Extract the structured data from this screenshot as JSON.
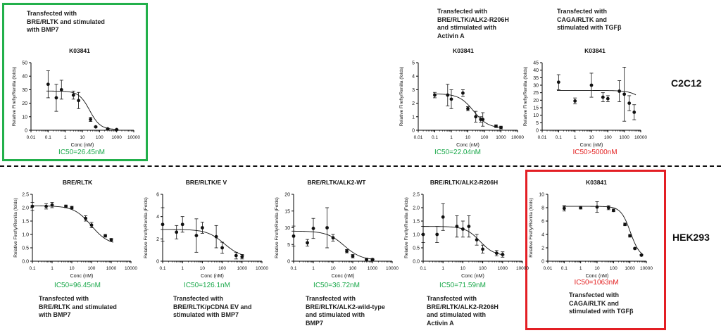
{
  "colors": {
    "accent_green": "#1aa84a",
    "accent_red": "#e32222",
    "box_green": "#22b04b",
    "box_red": "#e31e24"
  },
  "row_labels": {
    "top": "C2C12",
    "bottom": "HEK293"
  },
  "top_notes": [
    "Transfected with\nBRE/RLTK and stimulated\nwith BMP7",
    "Transfected with\nBRE/RLTK/ALK2-R206H\nand stimulated with\nActivin A",
    "Transfected with\nCAGA/RLTK and\nstimulated with TGFβ"
  ],
  "bottom_notes": [
    "Transfected with\nBRE/RLTK and stimulated\nwith BMP7",
    "Transfected with\nBRE/RLTK/pCDNA EV and\nstimulated with BMP7",
    "Transfected with\nBRE/RLTK/ALK2-wild-type\nand stimulated with\nBMP7",
    "Transfected with\nBRE/RLTK/ALK2-R206H\nand stimulated with\nActivin A",
    "Transfected with\nCAGA/RLTK and\nstimulated with TGFβ"
  ],
  "chart_data": [
    {
      "type": "scatter",
      "title": "K03841",
      "xlabel": "Conc (nM)",
      "ylabel": "Relative Firefly/Renilla (folds)",
      "xscale": "log",
      "xticks": [
        "0.01",
        "0.1",
        "1",
        "10",
        "100",
        "1000",
        "10000"
      ],
      "yticks": [
        "0",
        "10",
        "20",
        "30",
        "40",
        "50"
      ],
      "ylim": [
        0,
        50
      ],
      "ic50": "IC50=26.45nM",
      "ic50_color": "green",
      "points": [
        {
          "x": 0.1,
          "y": 34,
          "err": 10
        },
        {
          "x": 0.3,
          "y": 24,
          "err": 10
        },
        {
          "x": 0.6,
          "y": 30,
          "err": 7
        },
        {
          "x": 3,
          "y": 26,
          "err": 3
        },
        {
          "x": 6,
          "y": 22,
          "err": 6
        },
        {
          "x": 30,
          "y": 8,
          "err": 1.5
        },
        {
          "x": 60,
          "y": 2.5,
          "err": 0.5
        },
        {
          "x": 300,
          "y": 1,
          "err": 0.5
        },
        {
          "x": 1000,
          "y": 0.5,
          "err": 0.3
        }
      ],
      "fit": {
        "top": 29,
        "bottom": 0.5,
        "ic50": 26.45,
        "hill": 1.4
      }
    },
    {
      "type": "scatter",
      "title": "K03841",
      "xlabel": "Conc (nM)",
      "ylabel": "Relative Firefly/Renilla (folds)",
      "xscale": "log",
      "xticks": [
        "0.01",
        "0.1",
        "1",
        "10",
        "100",
        "1000",
        "10000"
      ],
      "yticks": [
        "0",
        "1",
        "2",
        "3",
        "4",
        "5"
      ],
      "ylim": [
        0,
        5
      ],
      "ic50": "IC50=22.04nM",
      "ic50_color": "green",
      "points": [
        {
          "x": 0.1,
          "y": 2.6,
          "err": 0.2
        },
        {
          "x": 0.6,
          "y": 2.6,
          "err": 0.8
        },
        {
          "x": 1,
          "y": 2.3,
          "err": 0.7
        },
        {
          "x": 5,
          "y": 2.75,
          "err": 0.25
        },
        {
          "x": 10,
          "y": 1.6,
          "err": 0.15
        },
        {
          "x": 30,
          "y": 1.0,
          "err": 0.4
        },
        {
          "x": 60,
          "y": 0.8,
          "err": 0.2
        },
        {
          "x": 80,
          "y": 0.8,
          "err": 0.5
        },
        {
          "x": 500,
          "y": 0.3,
          "err": 0.1
        },
        {
          "x": 1000,
          "y": 0.2,
          "err": 0.1
        }
      ],
      "fit": {
        "top": 2.7,
        "bottom": 0.15,
        "ic50": 22.04,
        "hill": 1.0
      }
    },
    {
      "type": "scatter",
      "title": "K03841",
      "xlabel": "Conc (nM)",
      "ylabel": "Relative Firefly/Renilla (folds)",
      "xscale": "log",
      "xticks": [
        "0.01",
        "0.1",
        "1",
        "10",
        "100",
        "1000",
        "10000"
      ],
      "yticks": [
        "0",
        "5",
        "10",
        "15",
        "20",
        "25",
        "30",
        "35",
        "40",
        "45"
      ],
      "ylim": [
        0,
        45
      ],
      "ic50": "IC50>5000nM",
      "ic50_color": "red",
      "points": [
        {
          "x": 0.1,
          "y": 32,
          "err": 5
        },
        {
          "x": 1,
          "y": 19.5,
          "err": 2
        },
        {
          "x": 10,
          "y": 30,
          "err": 8
        },
        {
          "x": 50,
          "y": 22,
          "err": 3
        },
        {
          "x": 100,
          "y": 21,
          "err": 2
        },
        {
          "x": 500,
          "y": 26,
          "err": 7
        },
        {
          "x": 1000,
          "y": 24,
          "err": 18
        },
        {
          "x": 2000,
          "y": 18,
          "err": 5
        },
        {
          "x": 4000,
          "y": 12,
          "err": 5
        }
      ],
      "fit": {
        "top": 26.5,
        "bottom": 0,
        "ic50": 40000,
        "hill": 1.0
      }
    },
    {
      "type": "scatter",
      "title": "BRE/RLTK",
      "xlabel": "Conc (nM)",
      "ylabel": "Relative Firefly/Renilla (folds)",
      "xscale": "log",
      "xticks": [
        "0.1",
        "1",
        "10",
        "100",
        "1000",
        "10000"
      ],
      "yticks": [
        "0.0",
        "0.5",
        "1.0",
        "1.5",
        "2.0",
        "2.5"
      ],
      "ylim": [
        0,
        2.5
      ],
      "ic50": "IC50=96.45nM",
      "ic50_color": "green",
      "points": [
        {
          "x": 0.1,
          "y": 2.05,
          "err": 0.15
        },
        {
          "x": 0.5,
          "y": 2.05,
          "err": 0.1
        },
        {
          "x": 1,
          "y": 2.1,
          "err": 0.1
        },
        {
          "x": 5,
          "y": 2.05,
          "err": 0.05
        },
        {
          "x": 10,
          "y": 2.0,
          "err": 0.05
        },
        {
          "x": 50,
          "y": 1.6,
          "err": 0.1
        },
        {
          "x": 100,
          "y": 1.35,
          "err": 0.1
        },
        {
          "x": 500,
          "y": 0.95,
          "err": 0.05
        },
        {
          "x": 1000,
          "y": 0.8,
          "err": 0.05
        }
      ],
      "fit": {
        "top": 2.07,
        "bottom": 0.6,
        "ic50": 96.45,
        "hill": 1.0
      }
    },
    {
      "type": "scatter",
      "title": "BRE/RLTK/E V",
      "xlabel": "Conc (nM)",
      "ylabel": "Relative Firefly/Renilla (Folds)",
      "xscale": "log",
      "xticks": [
        "0.1",
        "1",
        "10",
        "100",
        "1000",
        "10000"
      ],
      "yticks": [
        "0",
        "2",
        "4",
        "6"
      ],
      "ylim": [
        0,
        6
      ],
      "ic50": "IC50=126.1nM",
      "ic50_color": "green",
      "points": [
        {
          "x": 0.1,
          "y": 3.3,
          "err": 1.5
        },
        {
          "x": 0.5,
          "y": 2.6,
          "err": 0.6
        },
        {
          "x": 1,
          "y": 3.3,
          "err": 0.7
        },
        {
          "x": 5,
          "y": 2.3,
          "err": 1.5
        },
        {
          "x": 10,
          "y": 3.0,
          "err": 0.5
        },
        {
          "x": 50,
          "y": 2.2,
          "err": 1.0
        },
        {
          "x": 100,
          "y": 1.2,
          "err": 0.5
        },
        {
          "x": 500,
          "y": 0.5,
          "err": 0.3
        },
        {
          "x": 1000,
          "y": 0.4,
          "err": 0.2
        }
      ],
      "fit": {
        "top": 2.85,
        "bottom": 0.3,
        "ic50": 126.1,
        "hill": 1.0
      }
    },
    {
      "type": "scatter",
      "title": "BRE/RLTK/ALK2-WT",
      "xlabel": "Conc (nM)",
      "ylabel": "Relative Firefly/Renilla (Folds)",
      "xscale": "log",
      "xticks": [
        "0.1",
        "1",
        "10",
        "100",
        "1000",
        "10000"
      ],
      "yticks": [
        "0",
        "5",
        "10",
        "15",
        "20"
      ],
      "ylim": [
        0,
        20
      ],
      "ic50": "IC50=36.72nM",
      "ic50_color": "green",
      "points": [
        {
          "x": 0.1,
          "y": 7.5,
          "err": 3
        },
        {
          "x": 0.5,
          "y": 5.5,
          "err": 1
        },
        {
          "x": 1,
          "y": 9.8,
          "err": 3
        },
        {
          "x": 5,
          "y": 10,
          "err": 6
        },
        {
          "x": 10,
          "y": 7,
          "err": 1
        },
        {
          "x": 50,
          "y": 3,
          "err": 0.5
        },
        {
          "x": 100,
          "y": 1.5,
          "err": 0.5
        },
        {
          "x": 500,
          "y": 0.5,
          "err": 0.4
        },
        {
          "x": 1000,
          "y": 0.5,
          "err": 0.3
        }
      ],
      "fit": {
        "top": 9,
        "bottom": 0.3,
        "ic50": 36.72,
        "hill": 1.0
      }
    },
    {
      "type": "scatter",
      "title": "BRE/RLTK/ALK2-R206H",
      "xlabel": "Conc (nM)",
      "ylabel": "Relative Firefly/Renilla (Folds)",
      "xscale": "log",
      "xticks": [
        "0.1",
        "1",
        "10",
        "100",
        "1000",
        "10000"
      ],
      "yticks": [
        "0.0",
        "0.5",
        "1.0",
        "1.5",
        "2.0",
        "2.5"
      ],
      "ylim": [
        0,
        2.5
      ],
      "ic50": "IC50=71.59nM",
      "ic50_color": "green",
      "points": [
        {
          "x": 0.1,
          "y": 1.0,
          "err": 0.3
        },
        {
          "x": 0.5,
          "y": 1.0,
          "err": 0.3
        },
        {
          "x": 1,
          "y": 1.65,
          "err": 0.5
        },
        {
          "x": 5,
          "y": 1.3,
          "err": 0.4
        },
        {
          "x": 10,
          "y": 1.2,
          "err": 0.3
        },
        {
          "x": 20,
          "y": 1.3,
          "err": 0.4
        },
        {
          "x": 50,
          "y": 0.8,
          "err": 0.2
        },
        {
          "x": 100,
          "y": 0.45,
          "err": 0.15
        },
        {
          "x": 500,
          "y": 0.3,
          "err": 0.1
        },
        {
          "x": 1000,
          "y": 0.25,
          "err": 0.1
        }
      ],
      "fit": {
        "top": 1.3,
        "bottom": 0.2,
        "ic50": 71.59,
        "hill": 1.2
      }
    },
    {
      "type": "scatter",
      "title": "K03841",
      "xlabel": "Conc (nM)",
      "ylabel": "Relative Firefly/Renilla (folds)",
      "xscale": "log",
      "xticks": [
        "0.01",
        "0.1",
        "1",
        "10",
        "100",
        "1000",
        "10000"
      ],
      "yticks": [
        "0",
        "2",
        "4",
        "6",
        "8",
        "10"
      ],
      "ylim": [
        0,
        10
      ],
      "ic50": "IC50=1063nM",
      "ic50_color": "red",
      "points": [
        {
          "x": 0.1,
          "y": 7.9,
          "err": 0.4
        },
        {
          "x": 1,
          "y": 8,
          "err": 0.2
        },
        {
          "x": 10,
          "y": 8.1,
          "err": 0.8
        },
        {
          "x": 50,
          "y": 8,
          "err": 0.3
        },
        {
          "x": 100,
          "y": 7.6,
          "err": 0.2
        },
        {
          "x": 500,
          "y": 5.5,
          "err": 0.2
        },
        {
          "x": 1000,
          "y": 3.8,
          "err": 0.2
        },
        {
          "x": 2000,
          "y": 1.9,
          "err": 0.1
        },
        {
          "x": 5000,
          "y": 0.9,
          "err": 0.1
        }
      ],
      "fit": {
        "top": 8.2,
        "bottom": 0.5,
        "ic50": 1063,
        "hill": 1.5
      }
    }
  ]
}
